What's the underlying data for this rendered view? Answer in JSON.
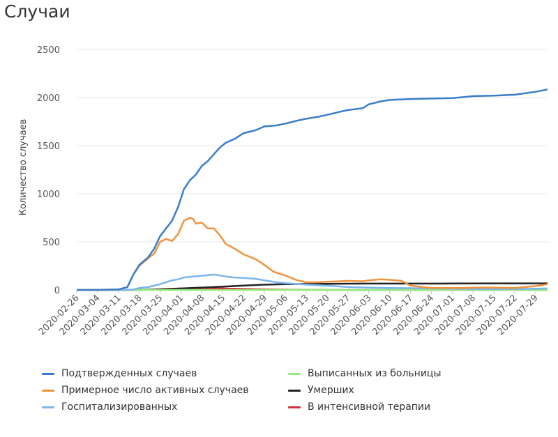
{
  "title": "Случаи",
  "chart_data": {
    "type": "line",
    "ylabel": "Количество случаев",
    "xlabel": "",
    "ylim": [
      0,
      2500
    ],
    "yticks": [
      0,
      500,
      1000,
      1500,
      2000,
      2500
    ],
    "grid": true,
    "legend_position": "bottom",
    "x_start": "2020-02-26",
    "x_end": "2020-08-02",
    "xticks": [
      "2020-02-26",
      "2020-03-04",
      "2020-03-11",
      "2020-03-18",
      "2020-03-25",
      "2020-04-01",
      "2020-04-08",
      "2020-04-15",
      "2020-04-22",
      "2020-04-29",
      "2020-05-06",
      "2020-05-13",
      "2020-05-20",
      "2020-05-27",
      "2020-06-03",
      "2020-06-10",
      "2020-06-17",
      "2020-06-24",
      "2020-07-01",
      "2020-07-08",
      "2020-07-15",
      "2020-07-22",
      "2020-07-29"
    ],
    "series": [
      {
        "name": "Подтвержденных случаев",
        "color": "#3a7dc9",
        "points": [
          [
            "2020-02-26",
            0
          ],
          [
            "2020-03-04",
            1
          ],
          [
            "2020-03-11",
            5
          ],
          [
            "2020-03-14",
            30
          ],
          [
            "2020-03-16",
            160
          ],
          [
            "2020-03-18",
            260
          ],
          [
            "2020-03-21",
            340
          ],
          [
            "2020-03-23",
            430
          ],
          [
            "2020-03-25",
            560
          ],
          [
            "2020-03-27",
            640
          ],
          [
            "2020-03-29",
            720
          ],
          [
            "2020-03-31",
            860
          ],
          [
            "2020-04-02",
            1050
          ],
          [
            "2020-04-04",
            1140
          ],
          [
            "2020-04-06",
            1200
          ],
          [
            "2020-04-08",
            1290
          ],
          [
            "2020-04-10",
            1340
          ],
          [
            "2020-04-12",
            1410
          ],
          [
            "2020-04-14",
            1480
          ],
          [
            "2020-04-16",
            1530
          ],
          [
            "2020-04-19",
            1570
          ],
          [
            "2020-04-22",
            1630
          ],
          [
            "2020-04-26",
            1660
          ],
          [
            "2020-04-29",
            1700
          ],
          [
            "2020-05-03",
            1710
          ],
          [
            "2020-05-06",
            1730
          ],
          [
            "2020-05-10",
            1760
          ],
          [
            "2020-05-13",
            1780
          ],
          [
            "2020-05-17",
            1800
          ],
          [
            "2020-05-20",
            1820
          ],
          [
            "2020-05-24",
            1850
          ],
          [
            "2020-05-27",
            1870
          ],
          [
            "2020-06-01",
            1890
          ],
          [
            "2020-06-03",
            1930
          ],
          [
            "2020-06-07",
            1960
          ],
          [
            "2020-06-10",
            1975
          ],
          [
            "2020-06-17",
            1985
          ],
          [
            "2020-06-24",
            1990
          ],
          [
            "2020-07-01",
            1995
          ],
          [
            "2020-07-05",
            2005
          ],
          [
            "2020-07-08",
            2015
          ],
          [
            "2020-07-15",
            2020
          ],
          [
            "2020-07-22",
            2030
          ],
          [
            "2020-07-29",
            2060
          ],
          [
            "2020-08-02",
            2085
          ]
        ]
      },
      {
        "name": "Примерное число активных случаев",
        "color": "#f0923d",
        "points": [
          [
            "2020-02-26",
            0
          ],
          [
            "2020-03-04",
            1
          ],
          [
            "2020-03-11",
            5
          ],
          [
            "2020-03-14",
            30
          ],
          [
            "2020-03-16",
            160
          ],
          [
            "2020-03-18",
            250
          ],
          [
            "2020-03-21",
            330
          ],
          [
            "2020-03-23",
            380
          ],
          [
            "2020-03-25",
            500
          ],
          [
            "2020-03-27",
            530
          ],
          [
            "2020-03-29",
            510
          ],
          [
            "2020-03-31",
            580
          ],
          [
            "2020-04-02",
            720
          ],
          [
            "2020-04-04",
            750
          ],
          [
            "2020-04-05",
            740
          ],
          [
            "2020-04-06",
            690
          ],
          [
            "2020-04-08",
            700
          ],
          [
            "2020-04-10",
            640
          ],
          [
            "2020-04-12",
            640
          ],
          [
            "2020-04-14",
            570
          ],
          [
            "2020-04-16",
            480
          ],
          [
            "2020-04-19",
            430
          ],
          [
            "2020-04-22",
            370
          ],
          [
            "2020-04-26",
            320
          ],
          [
            "2020-04-29",
            260
          ],
          [
            "2020-05-02",
            190
          ],
          [
            "2020-05-06",
            150
          ],
          [
            "2020-05-10",
            100
          ],
          [
            "2020-05-13",
            80
          ],
          [
            "2020-05-17",
            80
          ],
          [
            "2020-05-20",
            85
          ],
          [
            "2020-05-24",
            90
          ],
          [
            "2020-05-27",
            95
          ],
          [
            "2020-06-01",
            90
          ],
          [
            "2020-06-03",
            100
          ],
          [
            "2020-06-07",
            110
          ],
          [
            "2020-06-10",
            105
          ],
          [
            "2020-06-14",
            95
          ],
          [
            "2020-06-17",
            45
          ],
          [
            "2020-06-21",
            30
          ],
          [
            "2020-06-24",
            20
          ],
          [
            "2020-07-01",
            20
          ],
          [
            "2020-07-05",
            20
          ],
          [
            "2020-07-08",
            25
          ],
          [
            "2020-07-15",
            25
          ],
          [
            "2020-07-22",
            20
          ],
          [
            "2020-07-29",
            40
          ],
          [
            "2020-08-02",
            60
          ]
        ]
      },
      {
        "name": "Госпитализированных",
        "color": "#7cb5ec",
        "points": [
          [
            "2020-02-26",
            0
          ],
          [
            "2020-03-11",
            0
          ],
          [
            "2020-03-16",
            5
          ],
          [
            "2020-03-18",
            20
          ],
          [
            "2020-03-21",
            30
          ],
          [
            "2020-03-25",
            60
          ],
          [
            "2020-03-29",
            100
          ],
          [
            "2020-03-31",
            110
          ],
          [
            "2020-04-02",
            130
          ],
          [
            "2020-04-05",
            140
          ],
          [
            "2020-04-09",
            150
          ],
          [
            "2020-04-12",
            160
          ],
          [
            "2020-04-16",
            140
          ],
          [
            "2020-04-19",
            130
          ],
          [
            "2020-04-22",
            125
          ],
          [
            "2020-04-26",
            115
          ],
          [
            "2020-04-29",
            100
          ],
          [
            "2020-05-03",
            80
          ],
          [
            "2020-05-06",
            70
          ],
          [
            "2020-05-13",
            55
          ],
          [
            "2020-05-20",
            45
          ],
          [
            "2020-05-27",
            30
          ],
          [
            "2020-06-03",
            25
          ],
          [
            "2020-06-10",
            20
          ],
          [
            "2020-06-17",
            18
          ],
          [
            "2020-06-24",
            15
          ],
          [
            "2020-07-01",
            12
          ],
          [
            "2020-07-08",
            10
          ],
          [
            "2020-07-15",
            10
          ],
          [
            "2020-07-22",
            10
          ],
          [
            "2020-07-29",
            12
          ],
          [
            "2020-08-02",
            15
          ]
        ]
      },
      {
        "name": "Выписанных из больницы",
        "color": "#90ed7d",
        "points": [
          [
            "2020-02-26",
            0
          ],
          [
            "2020-08-02",
            0
          ]
        ]
      },
      {
        "name": "Умерших",
        "color": "#222222",
        "points": [
          [
            "2020-02-26",
            0
          ],
          [
            "2020-03-18",
            0
          ],
          [
            "2020-03-25",
            5
          ],
          [
            "2020-04-01",
            15
          ],
          [
            "2020-04-08",
            25
          ],
          [
            "2020-04-15",
            35
          ],
          [
            "2020-04-22",
            45
          ],
          [
            "2020-04-29",
            55
          ],
          [
            "2020-05-06",
            60
          ],
          [
            "2020-05-13",
            62
          ],
          [
            "2020-05-20",
            64
          ],
          [
            "2020-05-27",
            65
          ],
          [
            "2020-06-03",
            66
          ],
          [
            "2020-06-17",
            66
          ],
          [
            "2020-07-01",
            67
          ],
          [
            "2020-07-15",
            68
          ],
          [
            "2020-07-29",
            68
          ],
          [
            "2020-08-02",
            68
          ]
        ]
      },
      {
        "name": "В интенсивной терапии",
        "color": "#d62d3a",
        "points": [
          [
            "2020-02-26",
            0
          ],
          [
            "2020-03-18",
            0
          ],
          [
            "2020-03-25",
            8
          ],
          [
            "2020-04-01",
            15
          ],
          [
            "2020-04-08",
            18
          ],
          [
            "2020-04-15",
            15
          ],
          [
            "2020-04-22",
            10
          ],
          [
            "2020-04-29",
            6
          ],
          [
            "2020-05-06",
            3
          ],
          [
            "2020-05-13",
            1
          ],
          [
            "2020-06-01",
            0
          ],
          [
            "2020-08-02",
            0
          ]
        ]
      }
    ]
  }
}
